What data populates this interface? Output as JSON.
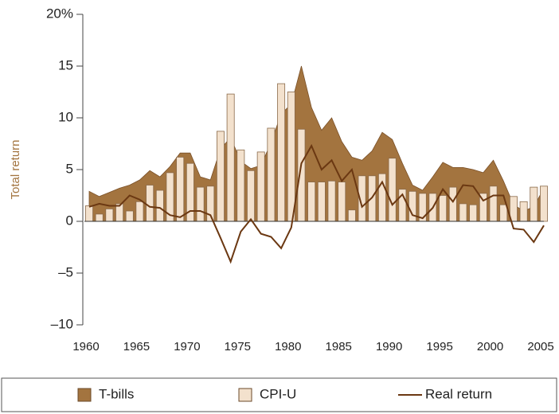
{
  "chart_data": {
    "type": "combo",
    "y_label": "Total return",
    "x": [
      1960,
      1961,
      1962,
      1963,
      1964,
      1965,
      1966,
      1967,
      1968,
      1969,
      1970,
      1971,
      1972,
      1973,
      1974,
      1975,
      1976,
      1977,
      1978,
      1979,
      1980,
      1981,
      1982,
      1983,
      1984,
      1985,
      1986,
      1987,
      1988,
      1989,
      1990,
      1991,
      1992,
      1993,
      1994,
      1995,
      1996,
      1997,
      1998,
      1999,
      2000,
      2001,
      2002,
      2003,
      2004,
      2005
    ],
    "xlim": [
      1960,
      2005
    ],
    "xticks": [
      1960,
      1965,
      1970,
      1975,
      1980,
      1985,
      1990,
      1995,
      2000,
      2005
    ],
    "ylim": [
      -10,
      20
    ],
    "yticks": [
      {
        "value": -10,
        "label": "–10"
      },
      {
        "value": -5,
        "label": "–5"
      },
      0,
      5,
      10,
      15,
      {
        "value": 20,
        "label": "20%"
      }
    ],
    "series": [
      {
        "name": "T-bills",
        "type": "area",
        "color": "#a3743f",
        "values": [
          2.9,
          2.4,
          2.8,
          3.2,
          3.5,
          4.0,
          4.9,
          4.3,
          5.3,
          6.6,
          6.6,
          4.3,
          4.0,
          7.0,
          8.1,
          5.8,
          5.1,
          5.4,
          7.6,
          10.4,
          11.3,
          15.0,
          11.0,
          8.8,
          10.0,
          7.7,
          6.2,
          5.9,
          6.8,
          8.6,
          7.9,
          5.6,
          3.5,
          3.0,
          4.3,
          5.7,
          5.2,
          5.2,
          5.0,
          4.7,
          5.9,
          3.9,
          1.6,
          1.0,
          1.4,
          3.2
        ]
      },
      {
        "name": "CPI-U",
        "type": "bar",
        "color": "#f3e1cd",
        "values": [
          1.5,
          0.7,
          1.2,
          1.7,
          1.0,
          1.9,
          3.5,
          3.0,
          4.7,
          6.2,
          5.6,
          3.3,
          3.4,
          8.7,
          12.3,
          6.9,
          4.9,
          6.7,
          9.0,
          13.3,
          12.5,
          8.9,
          3.8,
          3.8,
          3.9,
          3.8,
          1.1,
          4.4,
          4.4,
          4.6,
          6.1,
          3.1,
          2.9,
          2.7,
          2.7,
          2.5,
          3.3,
          1.7,
          1.6,
          2.7,
          3.4,
          1.6,
          2.4,
          1.9,
          3.3,
          3.4
        ]
      },
      {
        "name": "Real return",
        "type": "line",
        "color": "#6b3812",
        "values": [
          1.4,
          1.7,
          1.5,
          1.5,
          2.5,
          2.1,
          1.4,
          1.3,
          0.6,
          0.4,
          1.0,
          1.0,
          0.6,
          -1.6,
          -3.9,
          -1.0,
          0.2,
          -1.2,
          -1.5,
          -2.6,
          -0.6,
          5.6,
          7.3,
          5.0,
          5.9,
          3.9,
          5.0,
          1.4,
          2.3,
          3.8,
          1.6,
          2.6,
          0.6,
          0.3,
          1.3,
          3.1,
          1.9,
          3.5,
          3.4,
          2.0,
          2.5,
          2.5,
          -0.7,
          -0.8,
          -2.0,
          -0.4
        ]
      }
    ]
  }
}
